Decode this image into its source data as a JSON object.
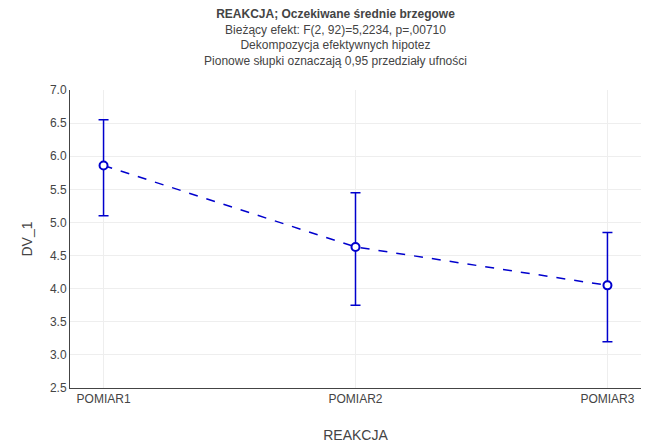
{
  "chart_data": {
    "type": "line",
    "title": "REAKCJA; Oczekiwane średnie brzegowe",
    "subtitle": [
      "Bieżący efekt: F(2, 92)=5,2234, p=,00710",
      "Dekompozycja efektywnych hipotez",
      "Pionowe słupki oznaczają 0,95 przedziały ufności"
    ],
    "xlabel": "REAKCJA",
    "ylabel": "DV_1",
    "categories": [
      "POMIAR1",
      "POMIAR2",
      "POMIAR3"
    ],
    "values": [
      5.86,
      4.63,
      4.05
    ],
    "error_low": [
      0.76,
      0.88,
      0.85
    ],
    "error_high": [
      0.69,
      0.82,
      0.8
    ],
    "ylim": [
      2.5,
      7.0
    ],
    "yticks": [
      2.5,
      {
        "value": 3.0,
        "label": "3.0"
      },
      3.5,
      {
        "value": 4.0,
        "label": "4.0"
      },
      4.5,
      {
        "value": 5.0,
        "label": "5.0"
      },
      5.5,
      {
        "value": 6.0,
        "label": "6.0"
      },
      6.5,
      {
        "value": 7.0,
        "label": "7.0"
      }
    ],
    "color": "#0000CD",
    "marker": "circle",
    "line_style": "dashed",
    "grid": true
  }
}
